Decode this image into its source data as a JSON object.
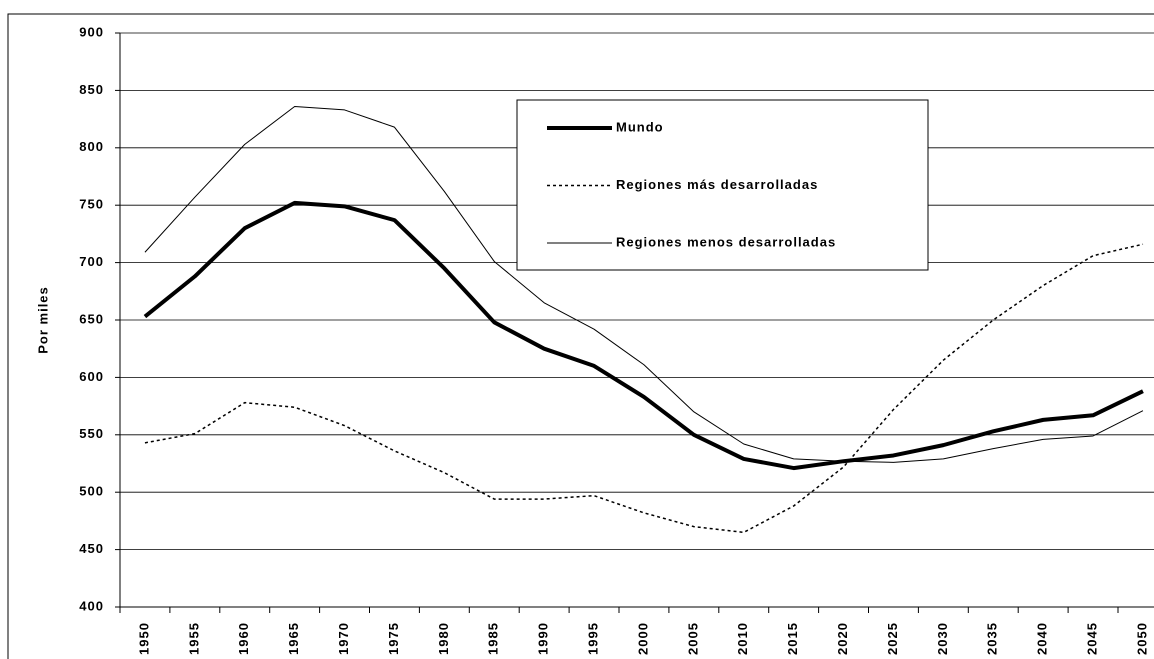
{
  "chart_data": {
    "type": "line",
    "y_label": "Por miles",
    "categories": [
      "1950",
      "1955",
      "1960",
      "1965",
      "1970",
      "1975",
      "1980",
      "1985",
      "1990",
      "1995",
      "2000",
      "2005",
      "2010",
      "2015",
      "2020",
      "2025",
      "2030",
      "2035",
      "2040",
      "2045",
      "2050"
    ],
    "series": [
      {
        "name": "Mundo",
        "color": "#000000",
        "line_style": "solid",
        "line_width": 4,
        "values": [
          653,
          688,
          730,
          752,
          749,
          737,
          695,
          648,
          625,
          610,
          583,
          550,
          529,
          521,
          527,
          532,
          541,
          553,
          563,
          567,
          588
        ]
      },
      {
        "name": "Regiones más desarrolladas",
        "color": "#000000",
        "line_style": "dotted",
        "line_width": 1.5,
        "values": [
          543,
          551,
          578,
          574,
          558,
          536,
          517,
          494,
          494,
          497,
          482,
          470,
          465,
          488,
          522,
          572,
          615,
          650,
          680,
          706,
          716
        ]
      },
      {
        "name": "Regiones menos desarrolladas",
        "color": "#000000",
        "line_style": "solid",
        "line_width": 1,
        "values": [
          709,
          757,
          803,
          836,
          833,
          818,
          762,
          701,
          665,
          642,
          611,
          570,
          542,
          529,
          527,
          526,
          529,
          538,
          546,
          549,
          571
        ]
      }
    ],
    "ylim": [
      400,
      900
    ],
    "yticks": [
      400,
      450,
      500,
      550,
      600,
      650,
      700,
      750,
      800,
      850,
      900
    ],
    "grid": true
  }
}
